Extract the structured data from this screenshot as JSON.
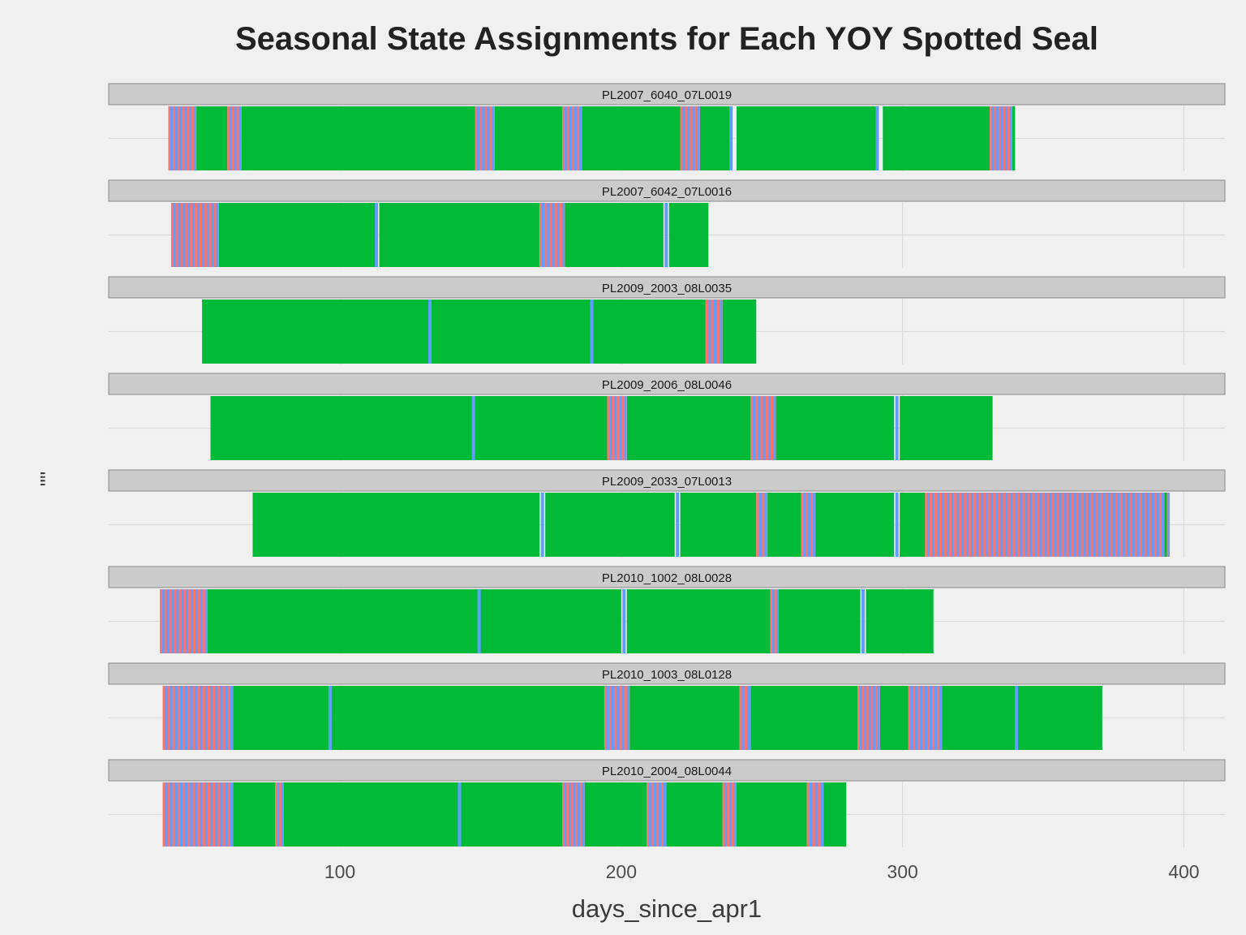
{
  "chart_data": {
    "type": "bar",
    "subtype": "faceted-state-timeline",
    "title": "Seasonal State Assignments for Each YOY Spotted Seal",
    "xlabel": "days_since_apr1",
    "ylabel": "\"\"",
    "xlim": [
      18,
      414
    ],
    "xticks": [
      100,
      200,
      300,
      400
    ],
    "grid": true,
    "legend": "none",
    "state_colors": {
      "green": "#00BA38",
      "blue": "#619CFF",
      "red": "#F8766D"
    },
    "panels": [
      {
        "id": "PL2007_6040_07L0019",
        "x_range": [
          39,
          340
        ],
        "green_segments": [
          [
            49,
            60
          ],
          [
            65,
            148
          ],
          [
            155,
            179
          ],
          [
            186,
            221
          ],
          [
            228,
            239
          ],
          [
            241,
            291
          ],
          [
            293,
            331
          ],
          [
            339,
            340
          ]
        ],
        "mixed_segments": [
          [
            39,
            49
          ],
          [
            60,
            65
          ],
          [
            148,
            155
          ],
          [
            179,
            186
          ],
          [
            221,
            228
          ],
          [
            331,
            339
          ]
        ],
        "blue_lines": [
          239,
          291
        ]
      },
      {
        "id": "PL2007_6042_07L0016",
        "x_range": [
          40,
          231
        ],
        "green_segments": [
          [
            57,
            113
          ],
          [
            114,
            171
          ],
          [
            180,
            215
          ],
          [
            217,
            231
          ]
        ],
        "mixed_segments": [
          [
            40,
            57
          ],
          [
            171,
            180
          ]
        ],
        "blue_lines": [
          113,
          216
        ]
      },
      {
        "id": "PL2009_2003_08L0035",
        "x_range": [
          51,
          248
        ],
        "green_segments": [
          [
            51,
            189
          ],
          [
            190,
            230
          ],
          [
            236,
            248
          ]
        ],
        "mixed_segments": [
          [
            230,
            236
          ]
        ],
        "blue_lines": [
          132,
          189.5
        ]
      },
      {
        "id": "PL2009_2006_08L0046",
        "x_range": [
          54,
          332
        ],
        "green_segments": [
          [
            54,
            147
          ],
          [
            148,
            195
          ],
          [
            202,
            246
          ],
          [
            255,
            297
          ],
          [
            299,
            332
          ]
        ],
        "mixed_segments": [
          [
            195,
            202
          ],
          [
            246,
            255
          ]
        ],
        "blue_lines": [
          147.5,
          298
        ]
      },
      {
        "id": "PL2009_2033_07L0013",
        "x_range": [
          69,
          395
        ],
        "green_segments": [
          [
            69,
            171
          ],
          [
            173,
            219
          ],
          [
            221,
            248
          ],
          [
            252,
            264
          ],
          [
            269,
            297
          ],
          [
            299,
            308
          ],
          [
            393,
            394
          ]
        ],
        "mixed_segments": [
          [
            248,
            252
          ],
          [
            264,
            269
          ],
          [
            308,
            393
          ],
          [
            394,
            395
          ]
        ],
        "blue_lines": [
          172,
          220,
          298
        ]
      },
      {
        "id": "PL2010_1002_08L0028",
        "x_range": [
          36,
          311
        ],
        "green_segments": [
          [
            53,
            149
          ],
          [
            150,
            200
          ],
          [
            202,
            253
          ],
          [
            256,
            285
          ],
          [
            287,
            311
          ]
        ],
        "mixed_segments": [
          [
            36,
            53
          ],
          [
            253,
            256
          ]
        ],
        "blue_lines": [
          149.5,
          201,
          286
        ]
      },
      {
        "id": "PL2010_1003_08L0128",
        "x_range": [
          37,
          371
        ],
        "green_segments": [
          [
            62,
            96
          ],
          [
            97,
            194
          ],
          [
            203,
            242
          ],
          [
            246,
            284
          ],
          [
            292,
            302
          ],
          [
            314,
            340
          ],
          [
            341,
            371
          ]
        ],
        "mixed_segments": [
          [
            37,
            62
          ],
          [
            194,
            203
          ],
          [
            242,
            246
          ],
          [
            284,
            292
          ],
          [
            302,
            314
          ]
        ],
        "blue_lines": [
          96.5,
          340.5
        ]
      },
      {
        "id": "PL2010_2004_08L0044",
        "x_range": [
          37,
          280
        ],
        "green_segments": [
          [
            62,
            77
          ],
          [
            80,
            142
          ],
          [
            143,
            179
          ],
          [
            187,
            209
          ],
          [
            216,
            236
          ],
          [
            241,
            266
          ],
          [
            272,
            280
          ]
        ],
        "mixed_segments": [
          [
            37,
            62
          ],
          [
            77,
            80
          ],
          [
            179,
            187
          ],
          [
            209,
            216
          ],
          [
            236,
            241
          ],
          [
            266,
            272
          ]
        ],
        "blue_lines": [
          142.5
        ]
      }
    ]
  }
}
